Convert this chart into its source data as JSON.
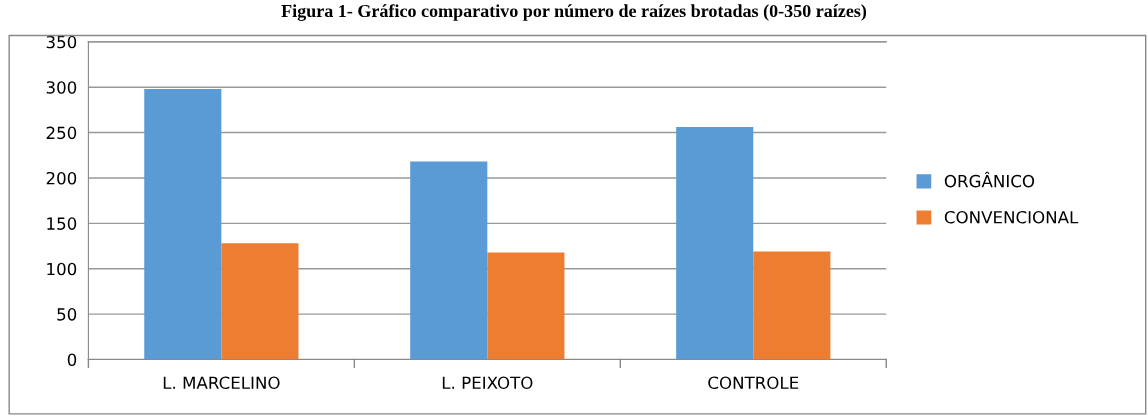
{
  "chart_data": {
    "type": "bar",
    "title": "Figura 1- Gráfico comparativo por número de raízes brotadas (0-350 raízes)",
    "categories": [
      "L. MARCELINO",
      "L. PEIXOTO",
      "CONTROLE"
    ],
    "series": [
      {
        "name": "ORGÂNICO",
        "color": "#5b9bd5",
        "values": [
          298,
          218,
          256
        ]
      },
      {
        "name": "CONVENCIONAL",
        "color": "#ed7d31",
        "values": [
          128,
          118,
          119
        ]
      }
    ],
    "ylim": [
      0,
      350
    ],
    "yticks": [
      0,
      50,
      100,
      150,
      200,
      250,
      300,
      350
    ],
    "grid": "y",
    "legend": "right"
  }
}
